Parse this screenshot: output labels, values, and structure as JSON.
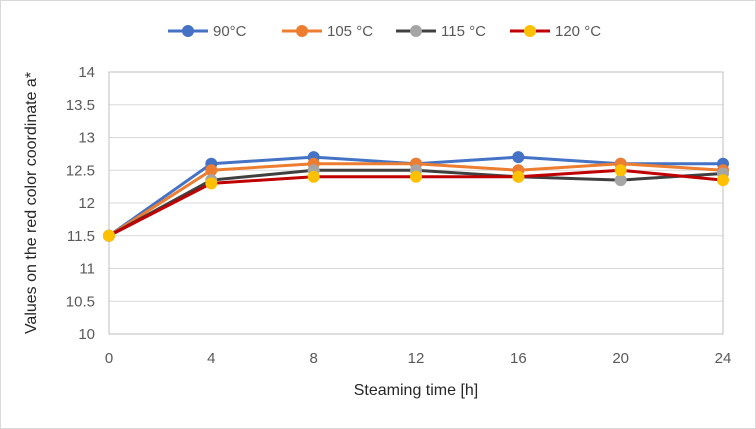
{
  "chart_data": {
    "type": "line",
    "title": "",
    "xlabel": "Steaming time [h]",
    "ylabel": "Values on the red color coordinate a*",
    "x": [
      0,
      4,
      8,
      12,
      16,
      20,
      24
    ],
    "x_tick_labels": [
      "0",
      "4",
      "8",
      "12",
      "16",
      "20",
      "24"
    ],
    "ylim": [
      10,
      14
    ],
    "y_ticks": [
      10,
      10.5,
      11,
      11.5,
      12,
      12.5,
      13,
      13.5,
      14
    ],
    "y_tick_labels": [
      "10",
      "10.5",
      "11",
      "11.5",
      "12",
      "12.5",
      "13",
      "13.5",
      "14"
    ],
    "grid": "horizontal",
    "legend_position": "top",
    "series": [
      {
        "name": "90°C",
        "color": "#4472c4",
        "values": [
          11.5,
          12.6,
          12.7,
          12.6,
          12.7,
          12.6,
          12.6
        ]
      },
      {
        "name": "105 °C",
        "color": "#ed7d31",
        "values": [
          11.5,
          12.5,
          12.6,
          12.6,
          12.5,
          12.6,
          12.5
        ]
      },
      {
        "name": "115 °C",
        "color": "#a5a5a5",
        "line_color": "#404040",
        "values": [
          11.5,
          12.35,
          12.5,
          12.5,
          12.4,
          12.35,
          12.45
        ]
      },
      {
        "name": "120 °C",
        "color": "#ffc000",
        "line_color": "#c00000",
        "values": [
          11.5,
          12.3,
          12.4,
          12.4,
          12.4,
          12.5,
          12.35
        ]
      }
    ]
  }
}
